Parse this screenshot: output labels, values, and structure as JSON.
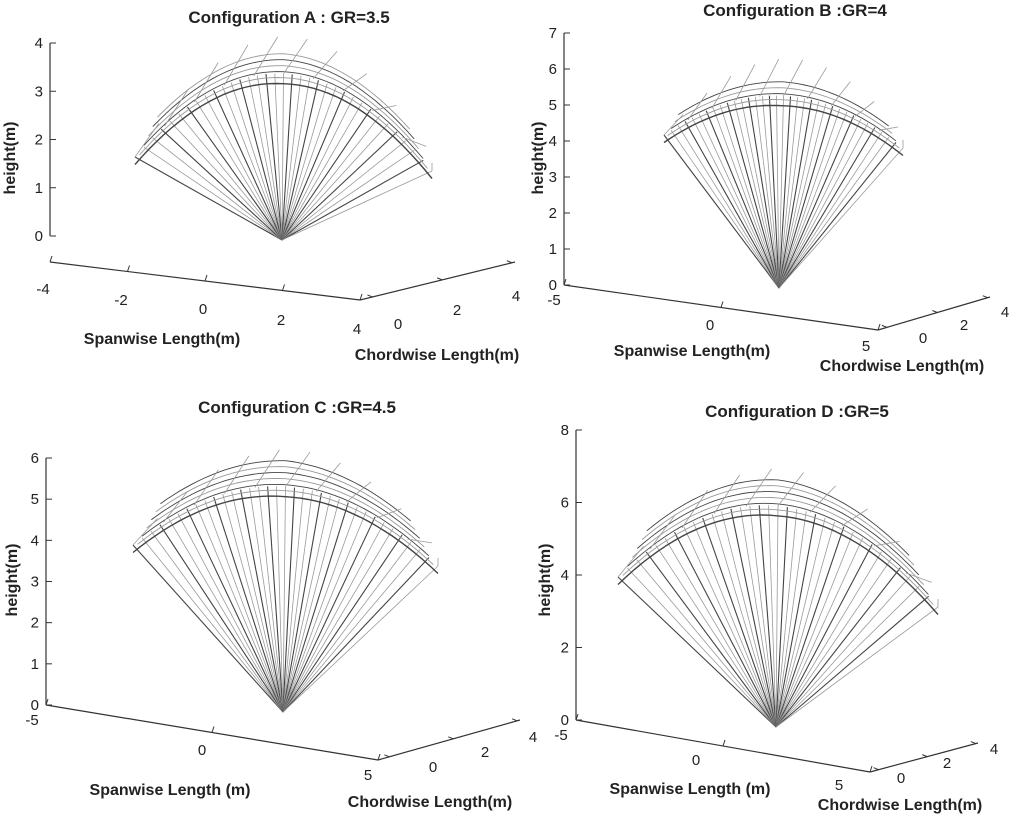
{
  "chart_data": [
    {
      "type": "3d-wireframe",
      "title": "Configuration A : GR=3.5",
      "growth_ratio": 3.5,
      "xlabel": "Spanwise Length(m)",
      "ylabel": "Chordwise Length(m)",
      "zlabel": "height(m)",
      "xlim": [
        -4,
        4
      ],
      "ylim": [
        0,
        4
      ],
      "zlim": [
        0,
        4
      ],
      "xticks": [
        "-4",
        "-2",
        "0",
        "2",
        "4"
      ],
      "yticks": [
        "0",
        "2",
        "4"
      ],
      "zticks": [
        "0",
        "1",
        "2",
        "3",
        "4"
      ]
    },
    {
      "type": "3d-wireframe",
      "title": "Configuration B :GR=4",
      "growth_ratio": 4,
      "xlabel": "Spanwise Length(m)",
      "ylabel": "Chordwise Length(m)",
      "zlabel": "height(m)",
      "xlim": [
        -5,
        5
      ],
      "ylim": [
        0,
        4
      ],
      "zlim": [
        0,
        7
      ],
      "xticks": [
        "-5",
        "0",
        "5"
      ],
      "yticks": [
        "0",
        "2",
        "4"
      ],
      "zticks": [
        "0",
        "1",
        "2",
        "3",
        "4",
        "5",
        "6",
        "7"
      ]
    },
    {
      "type": "3d-wireframe",
      "title": "Configuration C :GR=4.5",
      "growth_ratio": 4.5,
      "xlabel": "Spanwise Length (m)",
      "ylabel": "Chordwise Length(m)",
      "zlabel": "height(m)",
      "xlim": [
        -5,
        5
      ],
      "ylim": [
        0,
        4
      ],
      "zlim": [
        0,
        6
      ],
      "xticks": [
        "-5",
        "0",
        "5"
      ],
      "yticks": [
        "0",
        "2",
        "4"
      ],
      "zticks": [
        "0",
        "1",
        "2",
        "3",
        "4",
        "5",
        "6"
      ]
    },
    {
      "type": "3d-wireframe",
      "title": "Configuration D :GR=5",
      "growth_ratio": 5,
      "xlabel": "Spanwise Length (m)",
      "ylabel": "Chordwise Length(m)",
      "zlabel": "height(m)",
      "xlim": [
        -5,
        5
      ],
      "ylim": [
        0,
        4
      ],
      "zlim": [
        0,
        8
      ],
      "xticks": [
        "-5",
        "0",
        "5"
      ],
      "yticks": [
        "0",
        "2",
        "4"
      ],
      "zticks": [
        "0",
        "2",
        "4",
        "6",
        "8"
      ]
    }
  ],
  "colors": {
    "wire_dark": "#444444",
    "wire_light": "#9a9a9a",
    "axis": "#333333"
  }
}
